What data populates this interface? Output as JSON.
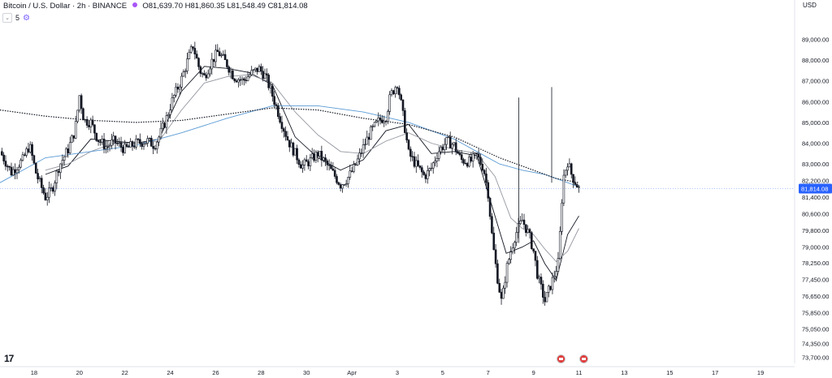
{
  "header": {
    "title": "Bitcoin / U.S. Dollar · 2h · BINANCE",
    "ohlc": "O81,639.70 H81,860.35 L81,548.49 C81,814.08",
    "indicator_count": "5"
  },
  "currency": "USD",
  "logo": "17",
  "colors": {
    "candle": "#131722",
    "ema_fast": "#131722",
    "ema_slow": "#9598a1",
    "ma_blue": "#5b9bd5",
    "ma_dotted": "#131722",
    "price_tag": "#2962ff"
  },
  "chart_data": {
    "type": "candlestick",
    "symbol": "Bitcoin / U.S. Dollar",
    "interval": "2h",
    "exchange": "BINANCE",
    "current_price": 81814.08,
    "current_price_label": "81,814.08",
    "ylim": [
      73400,
      89800
    ],
    "y_ticks": [
      89000,
      88000,
      87000,
      86000,
      85000,
      84000,
      83000,
      82200,
      81400,
      80600,
      79800,
      79000,
      78250,
      77450,
      76650,
      75850,
      75050,
      74350,
      73700
    ],
    "y_tick_labels": [
      "89,000.00",
      "88,000.00",
      "87,000.00",
      "86,000.00",
      "85,000.00",
      "84,000.00",
      "83,000.00",
      "82,200.00",
      "81,400.00",
      "80,600.00",
      "79,800.00",
      "79,000.00",
      "78,250.00",
      "77,450.00",
      "76,650.00",
      "75,850.00",
      "75,050.00",
      "74,350.00",
      "73,700.00"
    ],
    "x_tick_labels": [
      "18",
      "20",
      "22",
      "24",
      "26",
      "28",
      "30",
      "Apr",
      "3",
      "5",
      "7",
      "9",
      "11",
      "13",
      "15",
      "17",
      "19"
    ],
    "x_tick_days": [
      17.5,
      19.5,
      21.5,
      23.5,
      25.5,
      27.5,
      29.5,
      31.5,
      33.5,
      35.5,
      37.5,
      39.5,
      41.5,
      43.5,
      45.5,
      47.5,
      49.5
    ],
    "x_range_days": [
      16.0,
      51.0
    ],
    "price_path": [
      [
        16.0,
        83600
      ],
      [
        16.5,
        82600
      ],
      [
        17.0,
        83200
      ],
      [
        17.3,
        83900
      ],
      [
        17.6,
        82500
      ],
      [
        18.0,
        81400
      ],
      [
        18.3,
        81800
      ],
      [
        18.6,
        82900
      ],
      [
        19.0,
        83700
      ],
      [
        19.3,
        84600
      ],
      [
        19.5,
        86300
      ],
      [
        19.7,
        85100
      ],
      [
        20.0,
        85000
      ],
      [
        20.3,
        84200
      ],
      [
        20.7,
        83800
      ],
      [
        21.0,
        84100
      ],
      [
        21.5,
        83700
      ],
      [
        22.0,
        84000
      ],
      [
        22.5,
        84100
      ],
      [
        22.8,
        83900
      ],
      [
        23.0,
        84300
      ],
      [
        23.3,
        85100
      ],
      [
        23.6,
        86100
      ],
      [
        24.0,
        87100
      ],
      [
        24.3,
        88100
      ],
      [
        24.5,
        88700
      ],
      [
        24.8,
        87500
      ],
      [
        25.0,
        87200
      ],
      [
        25.3,
        87900
      ],
      [
        25.6,
        88400
      ],
      [
        26.0,
        87800
      ],
      [
        26.3,
        87200
      ],
      [
        26.7,
        87000
      ],
      [
        27.0,
        87300
      ],
      [
        27.4,
        87600
      ],
      [
        27.7,
        87200
      ],
      [
        28.0,
        86300
      ],
      [
        28.4,
        85000
      ],
      [
        28.7,
        84100
      ],
      [
        29.0,
        83500
      ],
      [
        29.3,
        82900
      ],
      [
        29.6,
        83100
      ],
      [
        30.0,
        83500
      ],
      [
        30.3,
        83100
      ],
      [
        30.7,
        82500
      ],
      [
        31.0,
        82000
      ],
      [
        31.3,
        82300
      ],
      [
        31.6,
        82800
      ],
      [
        32.0,
        83800
      ],
      [
        32.3,
        84500
      ],
      [
        32.7,
        85100
      ],
      [
        33.0,
        85300
      ],
      [
        33.2,
        86300
      ],
      [
        33.5,
        86900
      ],
      [
        33.7,
        85700
      ],
      [
        34.0,
        83500
      ],
      [
        34.3,
        83000
      ],
      [
        34.7,
        82400
      ],
      [
        35.0,
        82800
      ],
      [
        35.3,
        83600
      ],
      [
        35.7,
        84100
      ],
      [
        36.0,
        83900
      ],
      [
        36.3,
        83200
      ],
      [
        36.7,
        83100
      ],
      [
        37.0,
        83400
      ],
      [
        37.3,
        82800
      ],
      [
        37.5,
        81600
      ],
      [
        37.7,
        79200
      ],
      [
        37.9,
        77600
      ],
      [
        38.1,
        76300
      ],
      [
        38.3,
        77900
      ],
      [
        38.5,
        78800
      ],
      [
        38.7,
        79600
      ],
      [
        39.0,
        80300
      ],
      [
        39.3,
        79600
      ],
      [
        39.5,
        78800
      ],
      [
        39.7,
        77500
      ],
      [
        40.0,
        76400
      ],
      [
        40.2,
        77000
      ],
      [
        40.4,
        77600
      ],
      [
        40.6,
        78300
      ],
      [
        40.8,
        82300
      ],
      [
        41.0,
        83100
      ],
      [
        41.2,
        82400
      ],
      [
        41.5,
        81814
      ]
    ],
    "series": [
      {
        "kind": "ema_fast",
        "values": [
          [
            18,
            82500
          ],
          [
            19,
            82900
          ],
          [
            20,
            84200
          ],
          [
            21,
            84100
          ],
          [
            22,
            84000
          ],
          [
            23,
            84200
          ],
          [
            24,
            86500
          ],
          [
            25,
            87700
          ],
          [
            26,
            87600
          ],
          [
            27,
            87400
          ],
          [
            28,
            86800
          ],
          [
            29,
            84300
          ],
          [
            30,
            83300
          ],
          [
            31,
            82700
          ],
          [
            32,
            83200
          ],
          [
            33,
            84600
          ],
          [
            34,
            84900
          ],
          [
            35,
            83500
          ],
          [
            36,
            83600
          ],
          [
            37,
            83400
          ],
          [
            37.8,
            80500
          ],
          [
            38.3,
            78700
          ],
          [
            39,
            79000
          ],
          [
            39.5,
            79300
          ],
          [
            40,
            78200
          ],
          [
            40.5,
            77400
          ],
          [
            41,
            79600
          ],
          [
            41.5,
            80500
          ]
        ]
      },
      {
        "kind": "ema_slow",
        "values": [
          [
            18,
            82700
          ],
          [
            19,
            83000
          ],
          [
            20,
            83600
          ],
          [
            21,
            84000
          ],
          [
            22,
            84000
          ],
          [
            23,
            84100
          ],
          [
            24,
            85600
          ],
          [
            25,
            86900
          ],
          [
            26,
            87200
          ],
          [
            27,
            87300
          ],
          [
            28,
            86900
          ],
          [
            29,
            85500
          ],
          [
            30,
            84400
          ],
          [
            31,
            83600
          ],
          [
            32,
            83500
          ],
          [
            33,
            84100
          ],
          [
            34,
            84500
          ],
          [
            35,
            84000
          ],
          [
            36,
            83700
          ],
          [
            37,
            83500
          ],
          [
            37.8,
            82400
          ],
          [
            38.5,
            80400
          ],
          [
            39,
            79900
          ],
          [
            39.5,
            79600
          ],
          [
            40,
            78900
          ],
          [
            40.5,
            78300
          ],
          [
            41,
            78800
          ],
          [
            41.5,
            79900
          ]
        ]
      },
      {
        "kind": "ma_blue",
        "values": [
          [
            16,
            82100
          ],
          [
            18,
            83300
          ],
          [
            20,
            83600
          ],
          [
            22,
            83900
          ],
          [
            24,
            84500
          ],
          [
            26,
            85200
          ],
          [
            28,
            85800
          ],
          [
            30,
            85800
          ],
          [
            32,
            85500
          ],
          [
            34,
            85000
          ],
          [
            36,
            84200
          ],
          [
            37,
            83600
          ],
          [
            38,
            83000
          ],
          [
            39,
            82700
          ],
          [
            40,
            82500
          ],
          [
            40.5,
            82300
          ],
          [
            41,
            82100
          ],
          [
            41.5,
            81900
          ]
        ]
      },
      {
        "kind": "ma_dotted",
        "values": [
          [
            16,
            85600
          ],
          [
            18,
            85300
          ],
          [
            20,
            85100
          ],
          [
            22,
            85000
          ],
          [
            24,
            85100
          ],
          [
            26,
            85400
          ],
          [
            28,
            85700
          ],
          [
            30,
            85600
          ],
          [
            32,
            85200
          ],
          [
            34,
            84900
          ],
          [
            36,
            84300
          ],
          [
            37,
            83800
          ],
          [
            38,
            83300
          ],
          [
            39,
            82900
          ],
          [
            40,
            82500
          ],
          [
            40.5,
            82300
          ],
          [
            41,
            82200
          ],
          [
            41.5,
            82100
          ]
        ]
      }
    ],
    "spikes": [
      [
        38.85,
        86200,
        79200
      ],
      [
        40.3,
        86700,
        82100
      ]
    ],
    "event_flag_days": [
      40.7,
      41.7
    ]
  }
}
